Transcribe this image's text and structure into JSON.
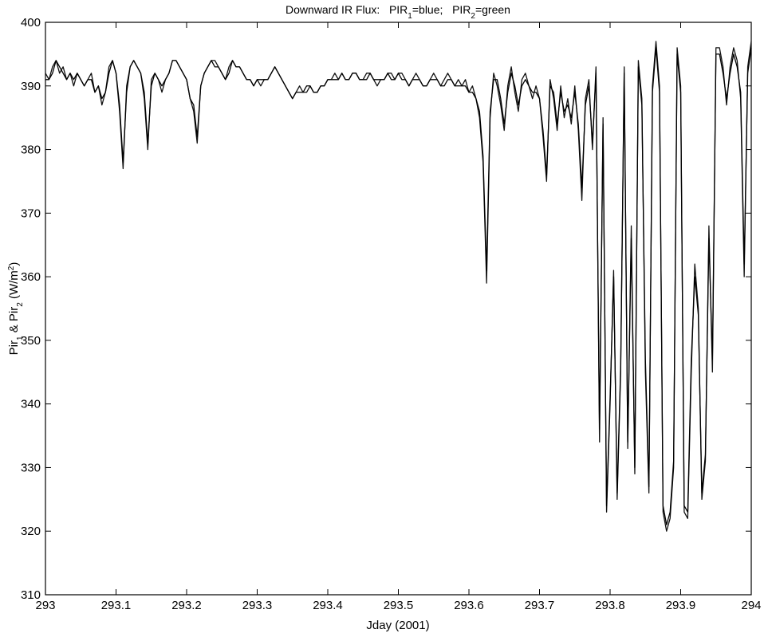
{
  "chart_data": {
    "type": "line",
    "title": [
      "Downward IR Flux:   PIR",
      "1",
      "=blue;   PIR",
      "2",
      "=green"
    ],
    "xlabel": "Jday (2001)",
    "ylabel": [
      "Pir",
      "1",
      " & Pir",
      "2",
      " (W/m",
      "2",
      ")"
    ],
    "xlim": [
      293,
      294
    ],
    "xticks": [
      293,
      293.1,
      293.2,
      293.3,
      293.4,
      293.5,
      293.6,
      293.7,
      293.8,
      293.9,
      294
    ],
    "ylim": [
      310,
      400
    ],
    "yticks": [
      310,
      320,
      330,
      340,
      350,
      360,
      370,
      380,
      390,
      400
    ],
    "grid": false,
    "x": [
      293,
      293.005,
      293.01,
      293.015,
      293.02,
      293.025,
      293.03,
      293.035,
      293.04,
      293.045,
      293.05,
      293.055,
      293.06,
      293.065,
      293.07,
      293.075,
      293.08,
      293.085,
      293.09,
      293.095,
      293.1,
      293.105,
      293.11,
      293.115,
      293.12,
      293.125,
      293.13,
      293.135,
      293.14,
      293.145,
      293.15,
      293.155,
      293.16,
      293.165,
      293.17,
      293.175,
      293.18,
      293.185,
      293.19,
      293.195,
      293.2,
      293.205,
      293.21,
      293.215,
      293.22,
      293.225,
      293.23,
      293.235,
      293.24,
      293.245,
      293.25,
      293.255,
      293.26,
      293.265,
      293.27,
      293.275,
      293.28,
      293.285,
      293.29,
      293.295,
      293.3,
      293.305,
      293.31,
      293.315,
      293.32,
      293.325,
      293.33,
      293.335,
      293.34,
      293.345,
      293.35,
      293.355,
      293.36,
      293.365,
      293.37,
      293.375,
      293.38,
      293.385,
      293.39,
      293.395,
      293.4,
      293.405,
      293.41,
      293.415,
      293.42,
      293.425,
      293.43,
      293.435,
      293.44,
      293.445,
      293.45,
      293.455,
      293.46,
      293.465,
      293.47,
      293.475,
      293.48,
      293.485,
      293.49,
      293.495,
      293.5,
      293.505,
      293.51,
      293.515,
      293.52,
      293.525,
      293.53,
      293.535,
      293.54,
      293.545,
      293.55,
      293.555,
      293.56,
      293.565,
      293.57,
      293.575,
      293.58,
      293.585,
      293.59,
      293.595,
      293.6,
      293.605,
      293.61,
      293.615,
      293.62,
      293.625,
      293.63,
      293.635,
      293.64,
      293.645,
      293.65,
      293.655,
      293.66,
      293.665,
      293.67,
      293.675,
      293.68,
      293.685,
      293.69,
      293.695,
      293.7,
      293.705,
      293.71,
      293.715,
      293.72,
      293.725,
      293.73,
      293.735,
      293.74,
      293.745,
      293.75,
      293.755,
      293.76,
      293.765,
      293.77,
      293.775,
      293.78,
      293.785,
      293.79,
      293.795,
      293.8,
      293.805,
      293.81,
      293.815,
      293.82,
      293.825,
      293.83,
      293.835,
      293.84,
      293.845,
      293.85,
      293.855,
      293.86,
      293.865,
      293.87,
      293.875,
      293.88,
      293.885,
      293.89,
      293.895,
      293.9,
      293.905,
      293.91,
      293.915,
      293.92,
      293.925,
      293.93,
      293.935,
      293.94,
      293.945,
      293.95,
      293.955,
      293.96,
      293.965,
      293.97,
      293.975,
      293.98,
      293.985,
      293.99,
      293.995,
      294
    ],
    "series": [
      {
        "color": "#111111",
        "values": [
          392,
          391,
          393,
          394,
          392,
          393,
          391,
          392,
          390,
          392,
          391,
          390,
          391,
          392,
          389,
          390,
          387,
          389,
          393,
          394,
          392,
          386,
          377,
          390,
          393,
          394,
          393,
          392,
          388,
          380,
          391,
          392,
          391,
          389,
          391,
          392,
          394,
          394,
          393,
          392,
          391,
          388,
          386,
          381,
          390,
          392,
          393,
          394,
          394,
          393,
          392,
          391,
          393,
          394,
          393,
          393,
          392,
          391,
          391,
          390,
          391,
          390,
          391,
          391,
          392,
          393,
          392,
          391,
          390,
          389,
          388,
          389,
          390,
          389,
          389,
          390,
          389,
          389,
          390,
          390,
          391,
          391,
          392,
          391,
          392,
          391,
          391,
          392,
          392,
          391,
          391,
          392,
          392,
          391,
          390,
          391,
          391,
          392,
          392,
          391,
          392,
          392,
          391,
          390,
          391,
          392,
          391,
          390,
          390,
          391,
          392,
          391,
          390,
          391,
          392,
          391,
          390,
          391,
          390,
          391,
          389,
          390,
          388,
          385,
          378,
          359,
          385,
          392,
          390,
          387,
          383,
          390,
          393,
          389,
          386,
          391,
          392,
          390,
          388,
          390,
          388,
          382,
          375,
          391,
          388,
          383,
          390,
          385,
          388,
          384,
          390,
          383,
          372,
          388,
          391,
          380,
          393,
          334,
          385,
          323,
          340,
          361,
          325,
          345,
          393,
          333,
          368,
          329,
          394,
          388,
          345,
          326,
          390,
          397,
          390,
          323,
          320,
          322,
          330,
          396,
          390,
          323,
          322,
          345,
          362,
          355,
          325,
          331,
          368,
          345,
          396,
          396,
          393,
          387,
          393,
          396,
          394,
          388,
          360,
          393,
          397
        ]
      },
      {
        "color": "#000000",
        "values": [
          391,
          391,
          392,
          394,
          393,
          392,
          391,
          392,
          391,
          392,
          391,
          390,
          391,
          391,
          389,
          390,
          388,
          389,
          392,
          394,
          392,
          387,
          378,
          389,
          393,
          394,
          393,
          392,
          389,
          381,
          390,
          392,
          391,
          390,
          391,
          392,
          394,
          394,
          393,
          392,
          391,
          388,
          387,
          382,
          390,
          392,
          393,
          394,
          393,
          393,
          392,
          391,
          392,
          394,
          393,
          393,
          392,
          391,
          391,
          390,
          391,
          391,
          391,
          391,
          392,
          393,
          392,
          391,
          390,
          389,
          388,
          389,
          389,
          389,
          390,
          390,
          389,
          389,
          390,
          390,
          391,
          391,
          391,
          391,
          392,
          391,
          391,
          392,
          392,
          391,
          391,
          391,
          392,
          391,
          391,
          391,
          391,
          392,
          391,
          391,
          392,
          391,
          391,
          390,
          391,
          391,
          391,
          390,
          390,
          391,
          391,
          391,
          390,
          390,
          391,
          391,
          390,
          390,
          390,
          390,
          389,
          389,
          388,
          386,
          379,
          361,
          386,
          391,
          391,
          388,
          384,
          389,
          392,
          390,
          387,
          390,
          391,
          390,
          389,
          389,
          388,
          383,
          376,
          390,
          389,
          384,
          389,
          386,
          387,
          385,
          389,
          384,
          374,
          387,
          390,
          381,
          392,
          336,
          384,
          324,
          341,
          360,
          326,
          346,
          392,
          334,
          366,
          330,
          393,
          387,
          347,
          327,
          389,
          396,
          389,
          324,
          321,
          323,
          331,
          395,
          389,
          324,
          323,
          347,
          360,
          354,
          326,
          332,
          366,
          347,
          395,
          395,
          392,
          388,
          392,
          395,
          393,
          389,
          362,
          392,
          396
        ]
      }
    ]
  }
}
